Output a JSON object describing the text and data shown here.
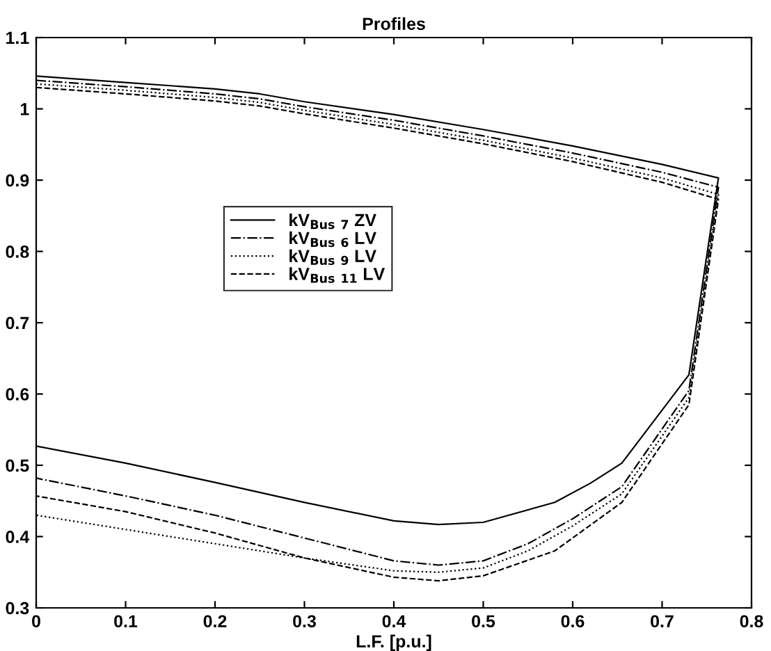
{
  "chart_data": {
    "type": "line",
    "title": "Profiles",
    "xlabel": "L.F. [p.u.]",
    "xlim": [
      0,
      0.8
    ],
    "xticks": [
      0,
      0.1,
      0.2,
      0.3,
      0.4,
      0.5,
      0.6,
      0.7,
      0.8
    ],
    "ylim": [
      0.3,
      1.1
    ],
    "yticks": [
      0.3,
      0.4,
      0.5,
      0.6,
      0.7,
      0.8,
      0.9,
      1,
      1.1
    ],
    "grid": false,
    "legend": "center",
    "marker": "none",
    "series": [
      {
        "name": "kV$_{Bus 7}$ ZV",
        "color": "#000000",
        "line_style": "solid",
        "x": [
          0,
          0.1,
          0.2,
          0.25,
          0.3,
          0.4,
          0.5,
          0.6,
          0.7,
          0.763,
          0.73,
          0.655,
          0.62,
          0.58,
          0.5,
          0.45,
          0.4,
          0.3,
          0.2,
          0.1,
          0
        ],
        "values": [
          1.046,
          1.037,
          1.028,
          1.021,
          1.01,
          0.992,
          0.971,
          0.948,
          0.922,
          0.903,
          0.627,
          0.503,
          0.475,
          0.448,
          0.42,
          0.417,
          0.422,
          0.448,
          0.476,
          0.503,
          0.527
        ]
      },
      {
        "name": "kV$_{Bus 6}$ LV",
        "color": "#000000",
        "line_style": "dashdot",
        "x": [
          0,
          0.1,
          0.2,
          0.25,
          0.3,
          0.4,
          0.5,
          0.6,
          0.7,
          0.763,
          0.73,
          0.655,
          0.6,
          0.55,
          0.5,
          0.45,
          0.4,
          0.3,
          0.2,
          0.1,
          0
        ],
        "values": [
          1.04,
          1.031,
          1.021,
          1.014,
          1.003,
          0.984,
          0.962,
          0.938,
          0.911,
          0.89,
          0.605,
          0.47,
          0.425,
          0.39,
          0.366,
          0.36,
          0.366,
          0.398,
          0.43,
          0.457,
          0.482
        ]
      },
      {
        "name": "kV$_{Bus 9}$ LV",
        "color": "#000000",
        "line_style": "dotted",
        "x": [
          0,
          0.1,
          0.2,
          0.25,
          0.3,
          0.4,
          0.5,
          0.6,
          0.7,
          0.763,
          0.73,
          0.655,
          0.6,
          0.55,
          0.5,
          0.45,
          0.4,
          0.3,
          0.2,
          0.1,
          0
        ],
        "values": [
          1.035,
          1.026,
          1.016,
          1.009,
          0.998,
          0.978,
          0.956,
          0.931,
          0.903,
          0.88,
          0.595,
          0.46,
          0.415,
          0.38,
          0.356,
          0.35,
          0.352,
          0.37,
          0.39,
          0.41,
          0.43
        ]
      },
      {
        "name": "kV$_{Bus 11}$ LV",
        "color": "#000000",
        "line_style": "dashed",
        "x": [
          0,
          0.1,
          0.2,
          0.25,
          0.3,
          0.4,
          0.5,
          0.6,
          0.7,
          0.763,
          0.73,
          0.655,
          0.58,
          0.5,
          0.45,
          0.4,
          0.3,
          0.2,
          0.1,
          0
        ],
        "values": [
          1.03,
          1.021,
          1.011,
          1.004,
          0.993,
          0.973,
          0.951,
          0.926,
          0.897,
          0.873,
          0.585,
          0.448,
          0.38,
          0.345,
          0.338,
          0.343,
          0.37,
          0.405,
          0.435,
          0.457
        ]
      }
    ]
  }
}
